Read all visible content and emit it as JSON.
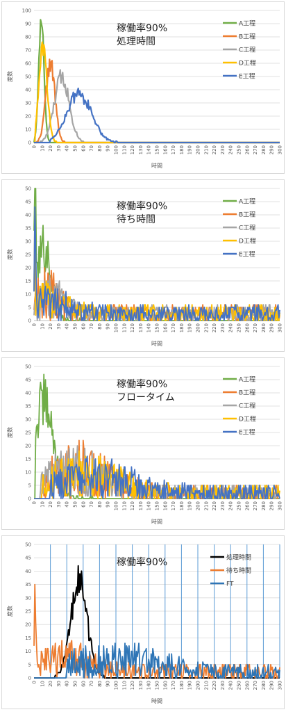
{
  "chart_data": [
    {
      "type": "line",
      "title_lines": [
        "稼働率90%",
        "処理時間"
      ],
      "xlabel": "時間",
      "ylabel": "度数",
      "xlim": [
        0,
        300
      ],
      "ylim": [
        0,
        100
      ],
      "ytick_step": 10,
      "xtick_step": 10,
      "legend": "top-right",
      "vertical_grid": false,
      "series": [
        {
          "name": "A工程",
          "color": "#70ad47",
          "width": 2.2,
          "peaks": [
            {
              "c": 9,
              "w": 3.2,
              "h": 95
            }
          ],
          "noise": 0.06,
          "base": 0,
          "from": 1,
          "to": 40,
          "seed": 11
        },
        {
          "name": "B工程",
          "color": "#ed7d31",
          "width": 2.2,
          "peaks": [
            {
              "c": 20,
              "w": 5.5,
              "h": 60
            }
          ],
          "noise": 0.12,
          "base": 0,
          "from": 4,
          "to": 55,
          "seed": 22
        },
        {
          "name": "C工程",
          "color": "#a5a5a5",
          "width": 2.2,
          "peaks": [
            {
              "c": 34,
              "w": 9,
              "h": 50
            }
          ],
          "noise": 0.15,
          "base": 0,
          "from": 5,
          "to": 80,
          "seed": 33
        },
        {
          "name": "D工程",
          "color": "#ffc000",
          "width": 2.2,
          "peaks": [
            {
              "c": 11,
              "w": 5,
              "h": 72
            }
          ],
          "noise": 0.1,
          "base": 0,
          "from": 2,
          "to": 45,
          "seed": 44
        },
        {
          "name": "E工程",
          "color": "#4472c4",
          "width": 2.2,
          "peaks": [
            {
              "c": 55,
              "w": 15,
              "h": 37
            }
          ],
          "noise": 0.15,
          "base": 0,
          "from": 20,
          "to": 110,
          "seed": 55
        }
      ]
    },
    {
      "type": "line",
      "title_lines": [
        "稼働率90%",
        "待ち時間"
      ],
      "xlabel": "時間",
      "ylabel": "度数",
      "xlim": [
        0,
        300
      ],
      "ylim": [
        0,
        50
      ],
      "ytick_step": 5,
      "xtick_step": 10,
      "legend": "top-right",
      "vertical_grid": false,
      "series": [
        {
          "name": "A工程",
          "color": "#70ad47",
          "width": 1.8,
          "peaks": [
            {
              "c": 1,
              "w": 1,
              "h": 48
            },
            {
              "c": 12,
              "w": 9,
              "h": 28
            }
          ],
          "noise": 0.35,
          "base": 0,
          "from": 0,
          "to": 60,
          "seed": 101
        },
        {
          "name": "B工程",
          "color": "#ed7d31",
          "width": 1.8,
          "peaks": [
            {
              "c": 15,
              "w": 15,
              "h": 8
            }
          ],
          "noise": 0.9,
          "base": 2.5,
          "from": 0,
          "to": 300,
          "seed": 102
        },
        {
          "name": "C工程",
          "color": "#a5a5a5",
          "width": 1.8,
          "peaks": [
            {
              "c": 20,
              "w": 15,
              "h": 6
            }
          ],
          "noise": 0.9,
          "base": 2.5,
          "from": 0,
          "to": 300,
          "seed": 103
        },
        {
          "name": "D工程",
          "color": "#ffc000",
          "width": 1.8,
          "peaks": [
            {
              "c": 1,
              "w": 1,
              "h": 24
            },
            {
              "c": 20,
              "w": 20,
              "h": 5
            }
          ],
          "noise": 0.9,
          "base": 2.5,
          "from": 0,
          "to": 300,
          "seed": 104
        },
        {
          "name": "E工程",
          "color": "#4472c4",
          "width": 1.8,
          "peaks": [
            {
              "c": 1,
              "w": 1,
              "h": 22
            },
            {
              "c": 20,
              "w": 25,
              "h": 4
            }
          ],
          "noise": 0.9,
          "base": 2.5,
          "from": 0,
          "to": 300,
          "seed": 105
        }
      ]
    },
    {
      "type": "line",
      "title_lines": [
        "稼働率90%",
        "フロータイム"
      ],
      "xlabel": "時間",
      "ylabel": "度数",
      "xlim": [
        0,
        300
      ],
      "ylim": [
        0,
        50
      ],
      "ytick_step": 5,
      "xtick_step": 10,
      "legend": "top-right",
      "vertical_grid": false,
      "series": [
        {
          "name": "A工程",
          "color": "#70ad47",
          "width": 1.8,
          "peaks": [
            {
              "c": 12,
              "w": 12,
              "h": 36
            }
          ],
          "noise": 0.3,
          "base": 0,
          "from": 2,
          "to": 80,
          "seed": 201
        },
        {
          "name": "B工程",
          "color": "#ed7d31",
          "width": 1.8,
          "peaks": [
            {
              "c": 55,
              "w": 40,
              "h": 9
            }
          ],
          "noise": 0.9,
          "base": 2,
          "from": 10,
          "to": 300,
          "seed": 202
        },
        {
          "name": "C工程",
          "color": "#a5a5a5",
          "width": 1.8,
          "peaks": [
            {
              "c": 50,
              "w": 35,
              "h": 8
            }
          ],
          "noise": 0.9,
          "base": 2,
          "from": 8,
          "to": 300,
          "seed": 203
        },
        {
          "name": "D工程",
          "color": "#ffc000",
          "width": 1.8,
          "peaks": [
            {
              "c": 60,
              "w": 40,
              "h": 7
            }
          ],
          "noise": 0.9,
          "base": 2,
          "from": 10,
          "to": 300,
          "seed": 204
        },
        {
          "name": "E工程",
          "color": "#4472c4",
          "width": 1.8,
          "peaks": [
            {
              "c": 75,
              "w": 45,
              "h": 6
            }
          ],
          "noise": 0.9,
          "base": 2,
          "from": 20,
          "to": 300,
          "seed": 205
        }
      ]
    },
    {
      "type": "line",
      "title_lines": [
        "稼働率90%"
      ],
      "xlabel": "時間",
      "ylabel": "度数",
      "xlim": [
        0,
        300
      ],
      "ylim": [
        0,
        50
      ],
      "ytick_step": 5,
      "xtick_step": 10,
      "legend": "top-right",
      "vertical_grid": true,
      "vertical_grid_color": "#5b9bd5",
      "series": [
        {
          "name": "処理時間",
          "color": "#000000",
          "width": 2,
          "peaks": [
            {
              "c": 55,
              "w": 10,
              "h": 36
            }
          ],
          "noise": 0.2,
          "base": 0,
          "from": 25,
          "to": 110,
          "seed": 301
        },
        {
          "name": "待ち時間",
          "color": "#ed7d31",
          "width": 1.8,
          "peaks": [
            {
              "c": 1,
              "w": 1,
              "h": 22
            },
            {
              "c": 40,
              "w": 30,
              "h": 5
            }
          ],
          "noise": 0.9,
          "base": 2,
          "from": 0,
          "to": 300,
          "seed": 302
        },
        {
          "name": "FT",
          "color": "#2e75b6",
          "width": 1.8,
          "peaks": [
            {
              "c": 100,
              "w": 60,
              "h": 5
            }
          ],
          "noise": 0.9,
          "base": 1.5,
          "from": 40,
          "to": 300,
          "seed": 303
        }
      ]
    }
  ]
}
